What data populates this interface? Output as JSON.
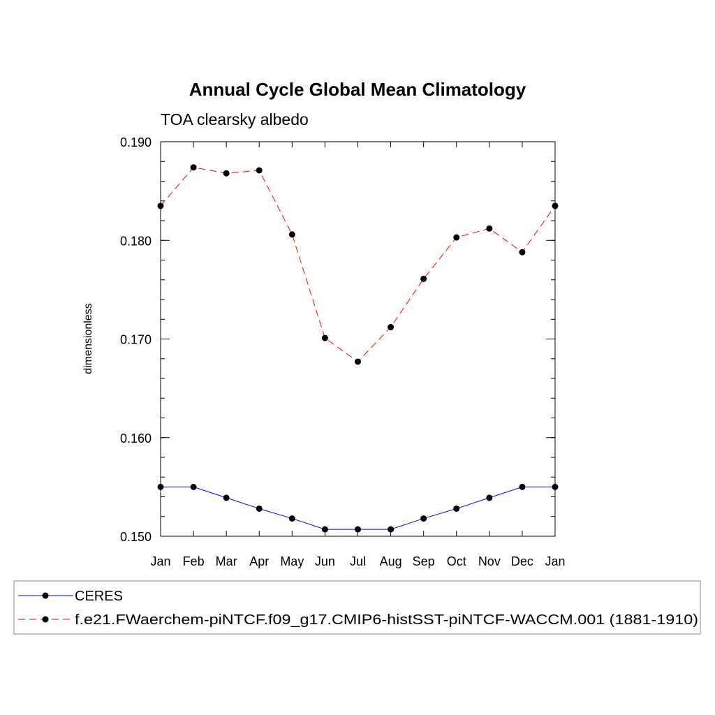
{
  "chart_data": {
    "type": "line",
    "title": "Annual Cycle Global Mean Climatology",
    "subtitle": "TOA clearsky albedo",
    "xlabel": "",
    "ylabel": "dimensionless",
    "categories": [
      "Jan",
      "Feb",
      "Mar",
      "Apr",
      "May",
      "Jun",
      "Jul",
      "Aug",
      "Sep",
      "Oct",
      "Nov",
      "Dec",
      "Jan"
    ],
    "ylim": [
      0.15,
      0.19
    ],
    "yticks": [
      "0.150",
      "0.160",
      "0.170",
      "0.180",
      "0.190"
    ],
    "series": [
      {
        "name": "CERES",
        "color": "#0000ff",
        "style": "solid",
        "values": [
          0.155,
          0.155,
          0.1539,
          0.1528,
          0.1518,
          0.1507,
          0.1507,
          0.1507,
          0.1518,
          0.1528,
          0.1539,
          0.155,
          0.155
        ]
      },
      {
        "name": "f.e21.FWaerchem-piNTCF.f09_g17.CMIP6-histSST-piNTCF-WACCM.001 (1881-1910)",
        "color": "#ff0000",
        "style": "dashed",
        "values": [
          0.1835,
          0.1874,
          0.1868,
          0.1871,
          0.1806,
          0.1701,
          0.1677,
          0.1712,
          0.1761,
          0.1803,
          0.1812,
          0.1788,
          0.1835
        ]
      }
    ],
    "grid": false,
    "legend_position": "bottom"
  }
}
